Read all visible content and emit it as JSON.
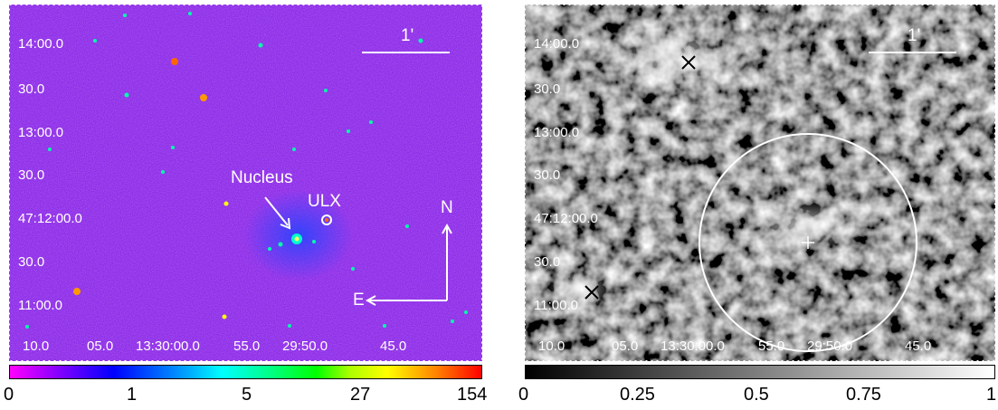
{
  "left_panel": {
    "dec_labels": [
      "14:00.0",
      "30.0",
      "13:00.0",
      "30.0",
      "47:12:00.0",
      "30.0",
      "11:00.0"
    ],
    "ra_labels": [
      "10.0",
      "05.0",
      "13:30:00.0",
      "55.0",
      "29:50.0",
      "45.0"
    ],
    "scale_label": "1'",
    "nucleus_label": "Nucleus",
    "ulx_label": "ULX",
    "north_label": "N",
    "east_label": "E",
    "colorbar_labels": [
      "0",
      "1",
      "5",
      "27",
      "154"
    ],
    "colormap": [
      "#ff00ff",
      "#0000ff",
      "#00ffff",
      "#00ff00",
      "#ffff00",
      "#ff0000"
    ]
  },
  "right_panel": {
    "dec_labels": [
      "14:00.0",
      "30.0",
      "13:00.0",
      "30.0",
      "47:12:00.0",
      "30.0",
      "11:00.0"
    ],
    "ra_labels": [
      "10.0",
      "05.0",
      "13:30:00.0",
      "55.0",
      "29:50.0",
      "45.0"
    ],
    "scale_label": "1'",
    "colorbar_labels": [
      "0",
      "0.25",
      "0.5",
      "0.75",
      "1"
    ],
    "colormap": [
      "#000000",
      "#ffffff"
    ]
  }
}
